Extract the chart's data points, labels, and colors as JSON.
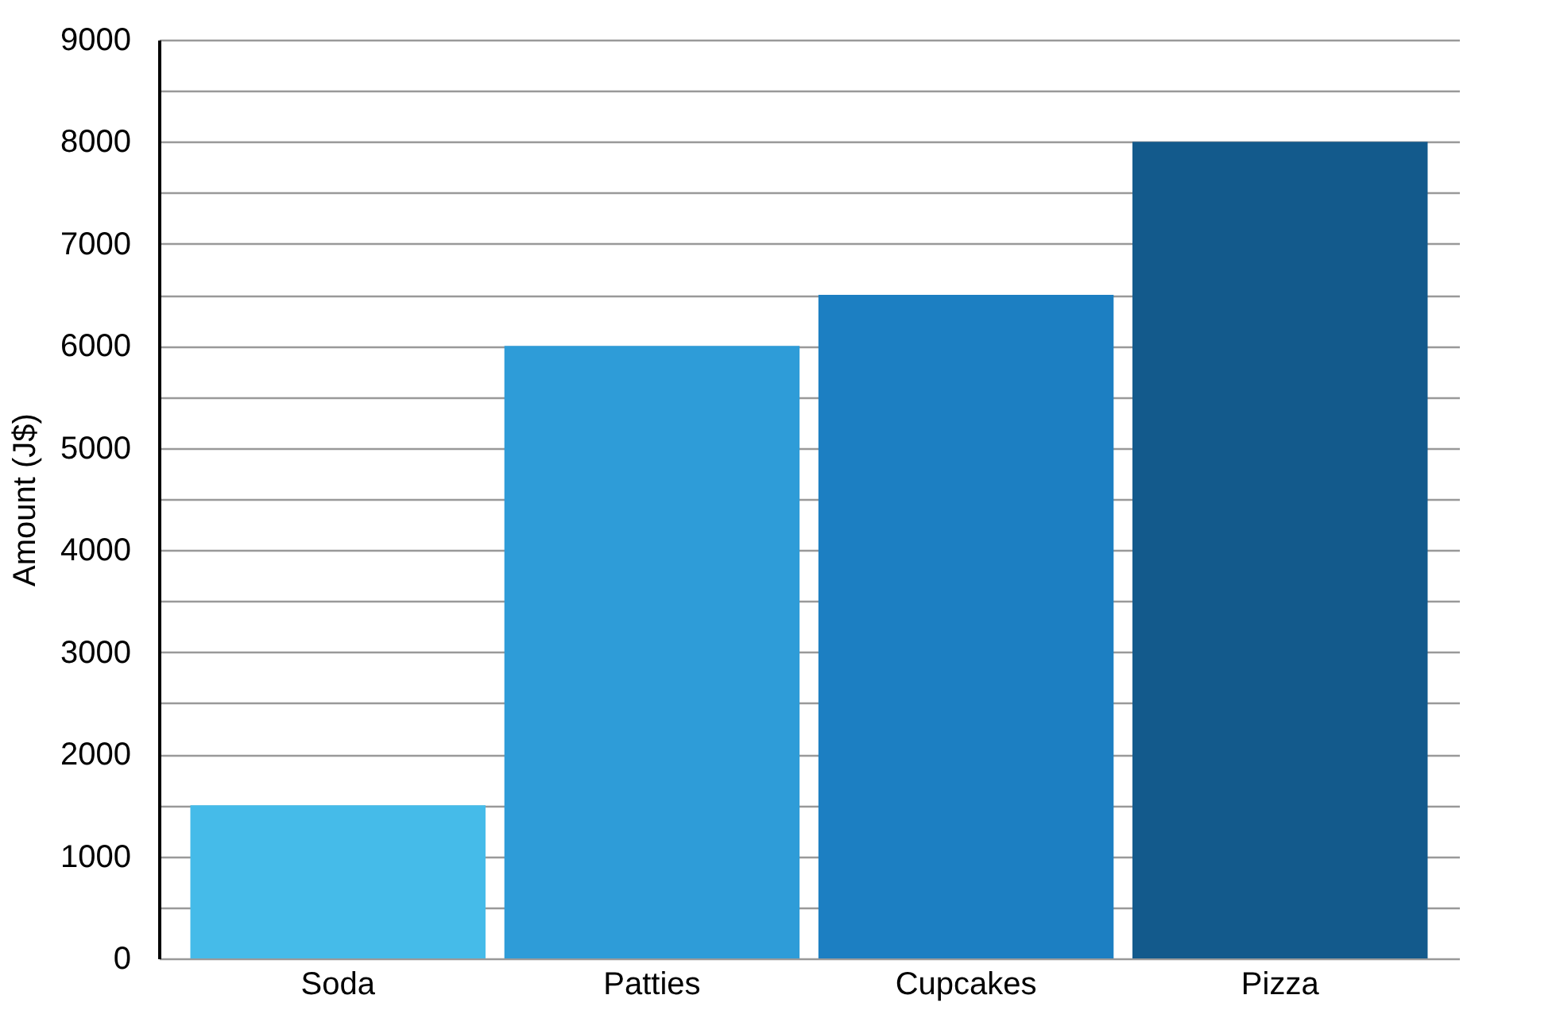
{
  "chart_data": {
    "type": "bar",
    "ylabel": "Amount (J$)",
    "categories": [
      "Soda",
      "Patties",
      "Cupcakes",
      "Pizza"
    ],
    "values": [
      1500,
      6000,
      6500,
      8000
    ],
    "colors": [
      "#45bbe9",
      "#2e9cd8",
      "#1c7fc2",
      "#135a8c"
    ],
    "ylim": [
      0,
      9000
    ],
    "yticks": [
      0,
      {
        "value": 500,
        "label": null
      },
      1000,
      {
        "value": 1500,
        "label": null
      },
      2000,
      {
        "value": 2500,
        "label": null
      },
      3000,
      {
        "value": 3500,
        "label": null
      },
      4000,
      {
        "value": 4500,
        "label": null
      },
      5000,
      {
        "value": 5500,
        "label": null
      },
      6000,
      {
        "value": 6500,
        "label": null
      },
      7000,
      {
        "value": 7500,
        "label": null
      },
      8000,
      {
        "value": 8500,
        "label": null
      },
      9000
    ],
    "grid": "y"
  }
}
